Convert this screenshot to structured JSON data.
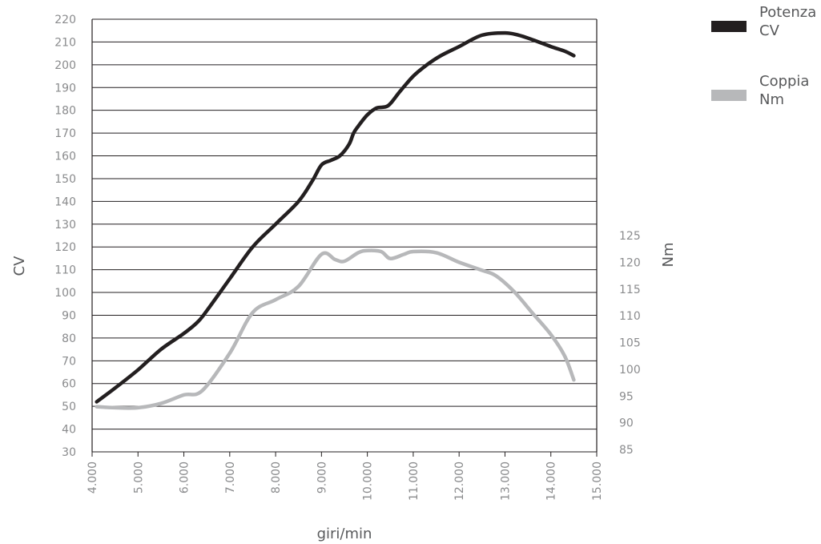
{
  "chart_data": {
    "type": "line",
    "xlabel": "giri/min",
    "ylabel_left": "CV",
    "ylabel_right": "Nm",
    "xlim": [
      4000,
      15000
    ],
    "x_ticks": [
      "4.000",
      "5.000",
      "6.000",
      "7.000",
      "8.000",
      "9.000",
      "10.000",
      "11.000",
      "12.000",
      "13.000",
      "14.000",
      "15.000"
    ],
    "ylim_left": [
      30,
      220
    ],
    "y_ticks_left": [
      "30",
      "40",
      "50",
      "60",
      "70",
      "80",
      "90",
      "100",
      "110",
      "120",
      "130",
      "140",
      "150",
      "160",
      "170",
      "180",
      "190",
      "200",
      "210",
      "220"
    ],
    "ylim_right": [
      85,
      125
    ],
    "y_ticks_right": [
      "85",
      "90",
      "95",
      "100",
      "105",
      "110",
      "115",
      "120",
      "125"
    ],
    "grid": true,
    "legend_position": "top-right",
    "series": [
      {
        "name": "Potenza CV",
        "legend_lines": [
          "Potenza",
          "CV"
        ],
        "axis": "left",
        "color": "#231f20",
        "x": [
          4100,
          4500,
          5000,
          5500,
          6000,
          6300,
          6500,
          7000,
          7500,
          8000,
          8500,
          8800,
          9000,
          9200,
          9400,
          9600,
          9700,
          9800,
          10000,
          10200,
          10450,
          10700,
          11000,
          11300,
          11600,
          12000,
          12500,
          13000,
          13300,
          13600,
          14000,
          14300,
          14500
        ],
        "y": [
          52,
          58,
          66,
          75,
          82,
          87,
          92,
          106,
          120,
          130,
          140,
          149,
          156,
          158,
          160,
          165,
          170,
          173,
          178,
          181,
          182,
          188,
          195,
          200,
          204,
          208,
          213,
          214,
          213,
          211,
          208,
          206,
          204
        ]
      },
      {
        "name": "Coppia Nm",
        "legend_lines": [
          "Coppia",
          "Nm"
        ],
        "axis": "right",
        "color": "#b7b8ba",
        "x": [
          4100,
          4500,
          5000,
          5500,
          6000,
          6400,
          7000,
          7500,
          8000,
          8500,
          9000,
          9300,
          9500,
          9800,
          10000,
          10300,
          10500,
          10800,
          11000,
          11500,
          12000,
          12500,
          12800,
          13200,
          13600,
          14000,
          14300,
          14500
        ],
        "y": [
          93,
          92.8,
          92.8,
          93.6,
          95.2,
          96,
          103,
          110.6,
          113,
          115.5,
          121.5,
          120.5,
          120.2,
          121.8,
          122.2,
          122,
          120.7,
          121.5,
          122,
          121.8,
          120,
          118.5,
          117.5,
          114.5,
          110.5,
          106.5,
          102.5,
          98
        ]
      }
    ]
  }
}
